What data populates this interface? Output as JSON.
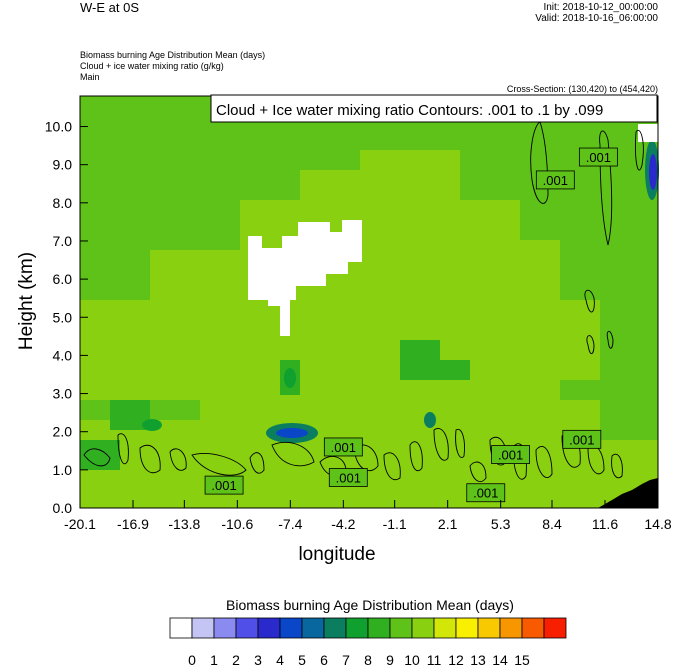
{
  "header": {
    "title": "W-E at 0S",
    "init": "Init: 2018-10-12_00:00:00",
    "valid": "Valid: 2018-10-16_06:00:00",
    "desc1": "Biomass burning Age Distribution Mean   (days)",
    "desc2": "Cloud + ice water mixing ratio   (g/kg)",
    "desc3": "Main",
    "cross_section": "Cross-Section: (130,420) to (454,420)",
    "contour_note": "Cloud + Ice water mixing ratio Contours: .001 to .1 by .099"
  },
  "chart_data": {
    "type": "heatmap",
    "xlabel": "longitude",
    "ylabel": "Height (km)",
    "xlim": [
      -20.1,
      14.8
    ],
    "ylim": [
      0.0,
      10.8
    ],
    "x_ticks": [
      "-20.1",
      "-16.9",
      "-13.8",
      "-10.6",
      "-7.4",
      "-4.2",
      "-1.1",
      "2.1",
      "5.3",
      "8.4",
      "11.6",
      "14.8"
    ],
    "y_ticks": [
      "0.0",
      "1.0",
      "2.0",
      "3.0",
      "4.0",
      "5.0",
      "6.0",
      "7.0",
      "8.0",
      "9.0",
      "10.0"
    ],
    "contour_labels": [
      {
        "text": ".001",
        "lon": 11.2,
        "h": 9.2
      },
      {
        "text": ".001",
        "lon": 8.6,
        "h": 8.6
      },
      {
        "text": ".001",
        "lon": -4.2,
        "h": 1.6
      },
      {
        "text": ".001",
        "lon": -3.9,
        "h": 0.8
      },
      {
        "text": ".001",
        "lon": -11.4,
        "h": 0.6
      },
      {
        "text": ".001",
        "lon": 10.2,
        "h": 1.8
      },
      {
        "text": ".001",
        "lon": 5.9,
        "h": 1.4
      },
      {
        "text": ".001",
        "lon": 4.4,
        "h": 0.4
      }
    ],
    "colorbar": {
      "title": "Biomass burning Age Distribution Mean  (days)",
      "labels": [
        "0",
        "1",
        "2",
        "3",
        "4",
        "5",
        "6",
        "7",
        "8",
        "9",
        "10",
        "11",
        "12",
        "13",
        "14",
        "15"
      ],
      "colors": [
        "#ffffff",
        "#c5c5f5",
        "#8a8af0",
        "#5050e8",
        "#2a2acc",
        "#0a46c8",
        "#08679e",
        "#0a7e5e",
        "#10a030",
        "#30b020",
        "#5ec218",
        "#88d010",
        "#d2e608",
        "#f8f000",
        "#f8c800",
        "#f89600",
        "#f85a00",
        "#f81e00"
      ]
    }
  }
}
